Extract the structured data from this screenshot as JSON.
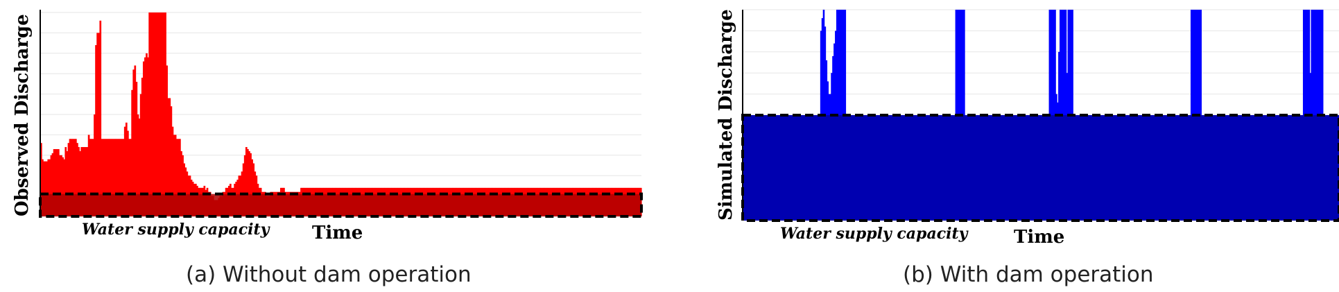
{
  "charts": [
    {
      "ylabel": "Observed Discharge",
      "xlabel": "Time",
      "annotation": "Water supply capacity",
      "caption": "(a) Without dam operation"
    },
    {
      "ylabel": "Simulated Discharge",
      "xlabel": "Time",
      "annotation": "Water supply capacity",
      "caption": "(b) With dam operation"
    }
  ],
  "chart_data": [
    {
      "type": "bar",
      "series_color": "#ff0000",
      "capacity_color": "#b00000",
      "capacity_level": 0.11,
      "ylim": [
        0,
        1
      ],
      "gridlines": true,
      "values": [
        0.36,
        0.28,
        0.27,
        0.27,
        0.27,
        0.28,
        0.28,
        0.3,
        0.31,
        0.33,
        0.33,
        0.33,
        0.33,
        0.3,
        0.3,
        0.29,
        0.28,
        0.34,
        0.32,
        0.36,
        0.38,
        0.38,
        0.38,
        0.38,
        0.38,
        0.36,
        0.34,
        0.32,
        0.34,
        0.34,
        0.34,
        0.34,
        0.34,
        0.4,
        0.38,
        0.38,
        0.38,
        0.5,
        0.84,
        0.9,
        0.9,
        0.96,
        0.38,
        0.38,
        0.38,
        0.38,
        0.38,
        0.38,
        0.38,
        0.38,
        0.38,
        0.38,
        0.38,
        0.38,
        0.38,
        0.38,
        0.38,
        0.38,
        0.44,
        0.46,
        0.42,
        0.38,
        0.38,
        0.62,
        0.72,
        0.74,
        0.66,
        0.5,
        0.48,
        0.6,
        0.68,
        0.76,
        0.78,
        0.8,
        0.78,
        1.0,
        1.0,
        1.0,
        1.0,
        1.0,
        1.0,
        1.0,
        1.0,
        1.0,
        1.0,
        1.0,
        1.0,
        0.74,
        0.58,
        0.58,
        0.54,
        0.44,
        0.4,
        0.4,
        0.38,
        0.38,
        0.38,
        0.32,
        0.3,
        0.26,
        0.24,
        0.22,
        0.2,
        0.2,
        0.18,
        0.17,
        0.16,
        0.16,
        0.15,
        0.14,
        0.14,
        0.14,
        0.14,
        0.15,
        0.13,
        0.14,
        0.12,
        0.12,
        0.1,
        0.1,
        0.08,
        0.08,
        0.08,
        0.09,
        0.1,
        0.1,
        0.12,
        0.12,
        0.14,
        0.14,
        0.15,
        0.16,
        0.14,
        0.14,
        0.16,
        0.17,
        0.18,
        0.2,
        0.2,
        0.22,
        0.26,
        0.3,
        0.34,
        0.33,
        0.32,
        0.31,
        0.28,
        0.26,
        0.22,
        0.2,
        0.16,
        0.14,
        0.14,
        0.12,
        0.12,
        0.12,
        0.1,
        0.1,
        0.1,
        0.12,
        0.12,
        0.12,
        0.12,
        0.12,
        0.12,
        0.12,
        0.14,
        0.14,
        0.14,
        0.12,
        0.12,
        0.12,
        0.12,
        0.12,
        0.12,
        0.12,
        0.12,
        0.12,
        0.12,
        0.12,
        0.14,
        0.14,
        0.14,
        0.14,
        0.14,
        0.14,
        0.14,
        0.14,
        0.14,
        0.14,
        0.14,
        0.14,
        0.14,
        0.14,
        0.14,
        0.14,
        0.14,
        0.14,
        0.14,
        0.14,
        0.14,
        0.14,
        0.14,
        0.14,
        0.14,
        0.14,
        0.14,
        0.14,
        0.14,
        0.14,
        0.14,
        0.14,
        0.14,
        0.14,
        0.14,
        0.14,
        0.14,
        0.14,
        0.14,
        0.14,
        0.14,
        0.14,
        0.14,
        0.14,
        0.14,
        0.14,
        0.14,
        0.14,
        0.14,
        0.14,
        0.14,
        0.14,
        0.14,
        0.14,
        0.14,
        0.14,
        0.14,
        0.14,
        0.14,
        0.14,
        0.14,
        0.14,
        0.14,
        0.14,
        0.14,
        0.14,
        0.14,
        0.14,
        0.14,
        0.14,
        0.14,
        0.14,
        0.14,
        0.14,
        0.14,
        0.14,
        0.14,
        0.14,
        0.14,
        0.14,
        0.14,
        0.14,
        0.14,
        0.14,
        0.14,
        0.14,
        0.14,
        0.14,
        0.14,
        0.14,
        0.14,
        0.14,
        0.14,
        0.14,
        0.14,
        0.14,
        0.14,
        0.14,
        0.14,
        0.14,
        0.14,
        0.14,
        0.14,
        0.14,
        0.14,
        0.14,
        0.14,
        0.14,
        0.14,
        0.14,
        0.14,
        0.14,
        0.14,
        0.14,
        0.14,
        0.14,
        0.14,
        0.14,
        0.14,
        0.14,
        0.14,
        0.14,
        0.14,
        0.14,
        0.14,
        0.14,
        0.14,
        0.14,
        0.14,
        0.14,
        0.14,
        0.14,
        0.14,
        0.14,
        0.14,
        0.14,
        0.14,
        0.14,
        0.14,
        0.14,
        0.14,
        0.14,
        0.14,
        0.14,
        0.14,
        0.14,
        0.14,
        0.14,
        0.14,
        0.14,
        0.14,
        0.14,
        0.14,
        0.14,
        0.14,
        0.14,
        0.14,
        0.14,
        0.14,
        0.14,
        0.14,
        0.14,
        0.14,
        0.14,
        0.14,
        0.14,
        0.14,
        0.14,
        0.14,
        0.14,
        0.14,
        0.14,
        0.14,
        0.14,
        0.14,
        0.14,
        0.14,
        0.14,
        0.14,
        0.14,
        0.14,
        0.14,
        0.14,
        0.14,
        0.14,
        0.14,
        0.14,
        0.14,
        0.14,
        0.14,
        0.14,
        0.14,
        0.14,
        0.14,
        0.14,
        0.14,
        0.14,
        0.14,
        0.14,
        0.14,
        0.14,
        0.14,
        0.14,
        0.14,
        0.14,
        0.14,
        0.14,
        0.14,
        0.14,
        0.14,
        0.14,
        0.14,
        0.14,
        0.14,
        0.14,
        0.14,
        0.14,
        0.14,
        0.14,
        0.14,
        0.14,
        0.14,
        0.14,
        0.14,
        0.14,
        0.14,
        0.14,
        0.14,
        0.14,
        0.14,
        0.14,
        0.14,
        0.14,
        0.14,
        0.14,
        0.14
      ]
    },
    {
      "type": "bar",
      "series_color": "#0000ff",
      "capacity_color": "#0000b0",
      "capacity_level": 0.5,
      "ylim": [
        0,
        1
      ],
      "gridlines": true,
      "values": [
        0.5,
        0.5,
        0.5,
        0.5,
        0.5,
        0.5,
        0.5,
        0.5,
        0.5,
        0.5,
        0.5,
        0.5,
        0.5,
        0.5,
        0.5,
        0.5,
        0.5,
        0.5,
        0.5,
        0.5,
        0.5,
        0.5,
        0.5,
        0.5,
        0.5,
        0.5,
        0.5,
        0.5,
        0.5,
        0.5,
        0.5,
        0.5,
        0.5,
        0.5,
        0.5,
        0.5,
        0.5,
        0.5,
        0.5,
        0.5,
        0.5,
        0.5,
        0.5,
        0.5,
        0.5,
        0.5,
        0.5,
        0.5,
        0.5,
        0.5,
        0.5,
        0.5,
        0.5,
        0.5,
        0.5,
        0.5,
        0.5,
        0.5,
        0.9,
        0.96,
        1.0,
        0.92,
        0.76,
        0.66,
        0.6,
        0.6,
        0.7,
        0.78,
        0.84,
        0.9,
        1.0,
        1.0,
        1.0,
        1.0,
        1.0,
        1.0,
        1.0,
        0.5,
        0.5,
        0.5,
        0.5,
        0.5,
        0.5,
        0.5,
        0.5,
        0.5,
        0.5,
        0.5,
        0.5,
        0.5,
        0.5,
        0.5,
        0.5,
        0.5,
        0.5,
        0.5,
        0.5,
        0.5,
        0.5,
        0.5,
        0.5,
        0.5,
        0.5,
        0.5,
        0.5,
        0.5,
        0.5,
        0.5,
        0.5,
        0.5,
        0.5,
        0.5,
        0.5,
        0.5,
        0.5,
        0.5,
        0.5,
        0.5,
        0.5,
        0.5,
        0.5,
        0.5,
        0.5,
        0.5,
        0.5,
        0.5,
        0.5,
        0.5,
        0.5,
        0.5,
        0.5,
        0.5,
        0.5,
        0.5,
        0.5,
        0.5,
        0.5,
        0.5,
        0.5,
        0.5,
        0.5,
        0.5,
        0.5,
        0.5,
        0.5,
        0.5,
        0.5,
        0.5,
        0.5,
        0.5,
        0.5,
        0.5,
        0.5,
        0.5,
        0.5,
        0.5,
        0.5,
        0.5,
        0.5,
        1.0,
        1.0,
        1.0,
        1.0,
        1.0,
        1.0,
        1.0,
        0.5,
        0.5,
        0.5,
        0.5,
        0.5,
        0.5,
        0.5,
        0.5,
        0.5,
        0.5,
        0.5,
        0.5,
        0.5,
        0.5,
        0.5,
        0.5,
        0.5,
        0.5,
        0.5,
        0.5,
        0.5,
        0.5,
        0.5,
        0.5,
        0.5,
        0.5,
        0.5,
        0.5,
        0.5,
        0.5,
        0.5,
        0.5,
        0.5,
        0.5,
        0.5,
        0.5,
        0.5,
        0.5,
        0.5,
        0.5,
        0.5,
        0.5,
        0.5,
        0.5,
        0.5,
        0.5,
        0.5,
        0.5,
        0.5,
        0.5,
        0.5,
        0.5,
        0.5,
        0.5,
        0.5,
        0.5,
        0.5,
        0.5,
        0.5,
        0.5,
        0.5,
        0.5,
        0.5,
        1.0,
        1.0,
        1.0,
        1.0,
        1.0,
        0.6,
        0.56,
        0.8,
        1.0,
        1.0,
        1.0,
        1.0,
        1.0,
        0.7,
        1.0,
        1.0,
        1.0,
        1.0,
        0.5,
        0.5,
        0.5,
        0.5,
        0.5,
        0.5,
        0.5,
        0.5,
        0.5,
        0.5,
        0.5,
        0.5,
        0.5,
        0.5,
        0.5,
        0.5,
        0.5,
        0.5,
        0.5,
        0.5,
        0.5,
        0.5,
        0.5,
        0.5,
        0.5,
        0.5,
        0.5,
        0.5,
        0.5,
        0.5,
        0.5,
        0.5,
        0.5,
        0.5,
        0.5,
        0.5,
        0.5,
        0.5,
        0.5,
        0.5,
        0.5,
        0.5,
        0.5,
        0.5,
        0.5,
        0.5,
        0.5,
        0.5,
        0.5,
        0.5,
        0.5,
        0.5,
        0.5,
        0.5,
        0.5,
        0.5,
        0.5,
        0.5,
        0.5,
        0.5,
        0.5,
        0.5,
        0.5,
        0.5,
        0.5,
        0.5,
        0.5,
        0.5,
        0.5,
        0.5,
        0.5,
        0.5,
        0.5,
        0.5,
        0.5,
        0.5,
        0.5,
        0.5,
        0.5,
        0.5,
        0.5,
        0.5,
        0.5,
        0.5,
        0.5,
        0.5,
        0.5,
        0.5,
        1.0,
        1.0,
        1.0,
        1.0,
        1.0,
        1.0,
        1.0,
        1.0,
        0.5,
        0.5,
        0.5,
        0.5,
        0.5,
        0.5,
        0.5,
        0.5,
        0.5,
        0.5,
        0.5,
        0.5,
        0.5,
        0.5,
        0.5,
        0.5,
        0.5,
        0.5,
        0.5,
        0.5,
        0.5,
        0.5,
        0.5,
        0.5,
        0.5,
        0.5,
        0.5,
        0.5,
        0.5,
        0.5,
        0.5,
        0.5,
        0.5,
        0.5,
        0.5,
        0.5,
        0.5,
        0.5,
        0.5,
        0.5,
        0.5,
        0.5,
        0.5,
        0.5,
        0.5,
        0.5,
        0.5,
        0.5,
        0.5,
        0.5,
        0.5,
        0.5,
        0.5,
        0.5,
        0.5,
        0.5,
        0.5,
        0.5,
        0.5,
        0.5,
        0.5,
        0.5,
        0.5,
        0.5,
        0.5,
        0.5,
        0.5,
        0.5,
        0.5,
        0.5,
        0.5,
        0.5,
        0.5,
        0.5,
        0.5,
        0.5,
        1.0,
        1.0,
        1.0,
        1.0,
        1.0,
        0.7,
        1.0,
        1.0,
        1.0,
        1.0,
        1.0,
        1.0,
        1.0,
        1.0,
        1.0,
        0.5,
        0.5,
        0.5,
        0.5,
        0.5,
        0.5,
        0.5,
        0.5,
        0.5,
        0.5,
        0.5,
        0.5
      ]
    }
  ]
}
